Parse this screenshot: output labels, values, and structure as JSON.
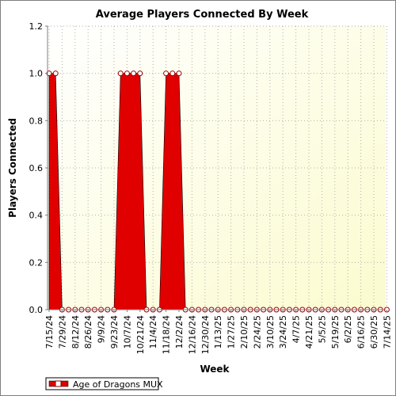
{
  "chart_data": {
    "type": "area",
    "title": "Average Players Connected By Week",
    "xlabel": "Week",
    "ylabel": "Players Connected",
    "ylim": [
      0,
      1.2
    ],
    "y_ticks": [
      "0.0",
      "0.2",
      "0.4",
      "0.6",
      "0.8",
      "1.0",
      "1.2"
    ],
    "x_tick_labels": [
      "7/15/24",
      "7/29/24",
      "8/12/24",
      "8/26/24",
      "9/9/24",
      "9/23/24",
      "10/7/24",
      "10/21/24",
      "11/4/24",
      "11/18/24",
      "12/2/24",
      "12/16/24",
      "12/30/24",
      "1/13/25",
      "1/27/25",
      "2/10/25",
      "2/24/25",
      "3/10/25",
      "3/24/25",
      "4/7/25",
      "4/21/25",
      "5/5/25",
      "5/19/25",
      "6/2/25",
      "6/16/25",
      "6/30/25",
      "7/14/25"
    ],
    "grid": true,
    "legend_position": "bottom-left",
    "series": [
      {
        "name": "Age of Dragons MUX",
        "color": "#e00000",
        "values": [
          1,
          1,
          0,
          0,
          0,
          0,
          0,
          0,
          0,
          0,
          0,
          1,
          1,
          1,
          1,
          0,
          0,
          0,
          1,
          1,
          1,
          0,
          0,
          0,
          0,
          0,
          0,
          0,
          0,
          0,
          0,
          0,
          0,
          0,
          0,
          0,
          0,
          0,
          0,
          0,
          0,
          0,
          0,
          0,
          0,
          0,
          0,
          0,
          0,
          0,
          0,
          0,
          0
        ]
      }
    ]
  }
}
